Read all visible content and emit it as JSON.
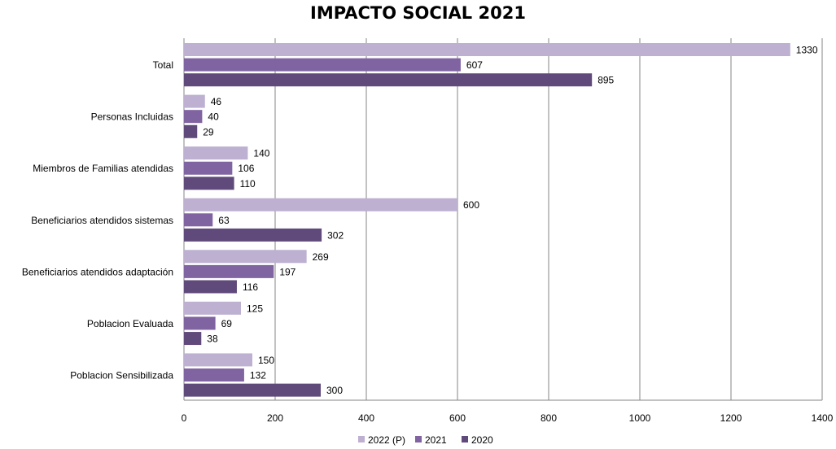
{
  "chart_data": {
    "type": "bar",
    "orientation": "horizontal",
    "title": "IMPACTO SOCIAL 2021",
    "xlabel": "",
    "ylabel": "",
    "xlim": [
      0,
      1400
    ],
    "xticks": [
      0,
      200,
      400,
      600,
      800,
      1000,
      1200,
      1400
    ],
    "grid": true,
    "legend_position": "bottom",
    "categories": [
      "Total",
      "Personas Incluidas",
      "Miembros de Familias atendidas",
      "Beneficiarios atendidos sistemas",
      "Beneficiarios atendidos adaptación",
      "Poblacion Evaluada",
      "Poblacion Sensibilizada"
    ],
    "series": [
      {
        "name": "2022 (P)",
        "color": "#bdb0d1",
        "values": [
          1330,
          46,
          140,
          600,
          269,
          125,
          150
        ]
      },
      {
        "name": "2021",
        "color": "#8064a2",
        "values": [
          607,
          40,
          106,
          63,
          197,
          69,
          132
        ]
      },
      {
        "name": "2020",
        "color": "#604a7b",
        "values": [
          895,
          29,
          110,
          302,
          116,
          38,
          300
        ]
      }
    ]
  }
}
